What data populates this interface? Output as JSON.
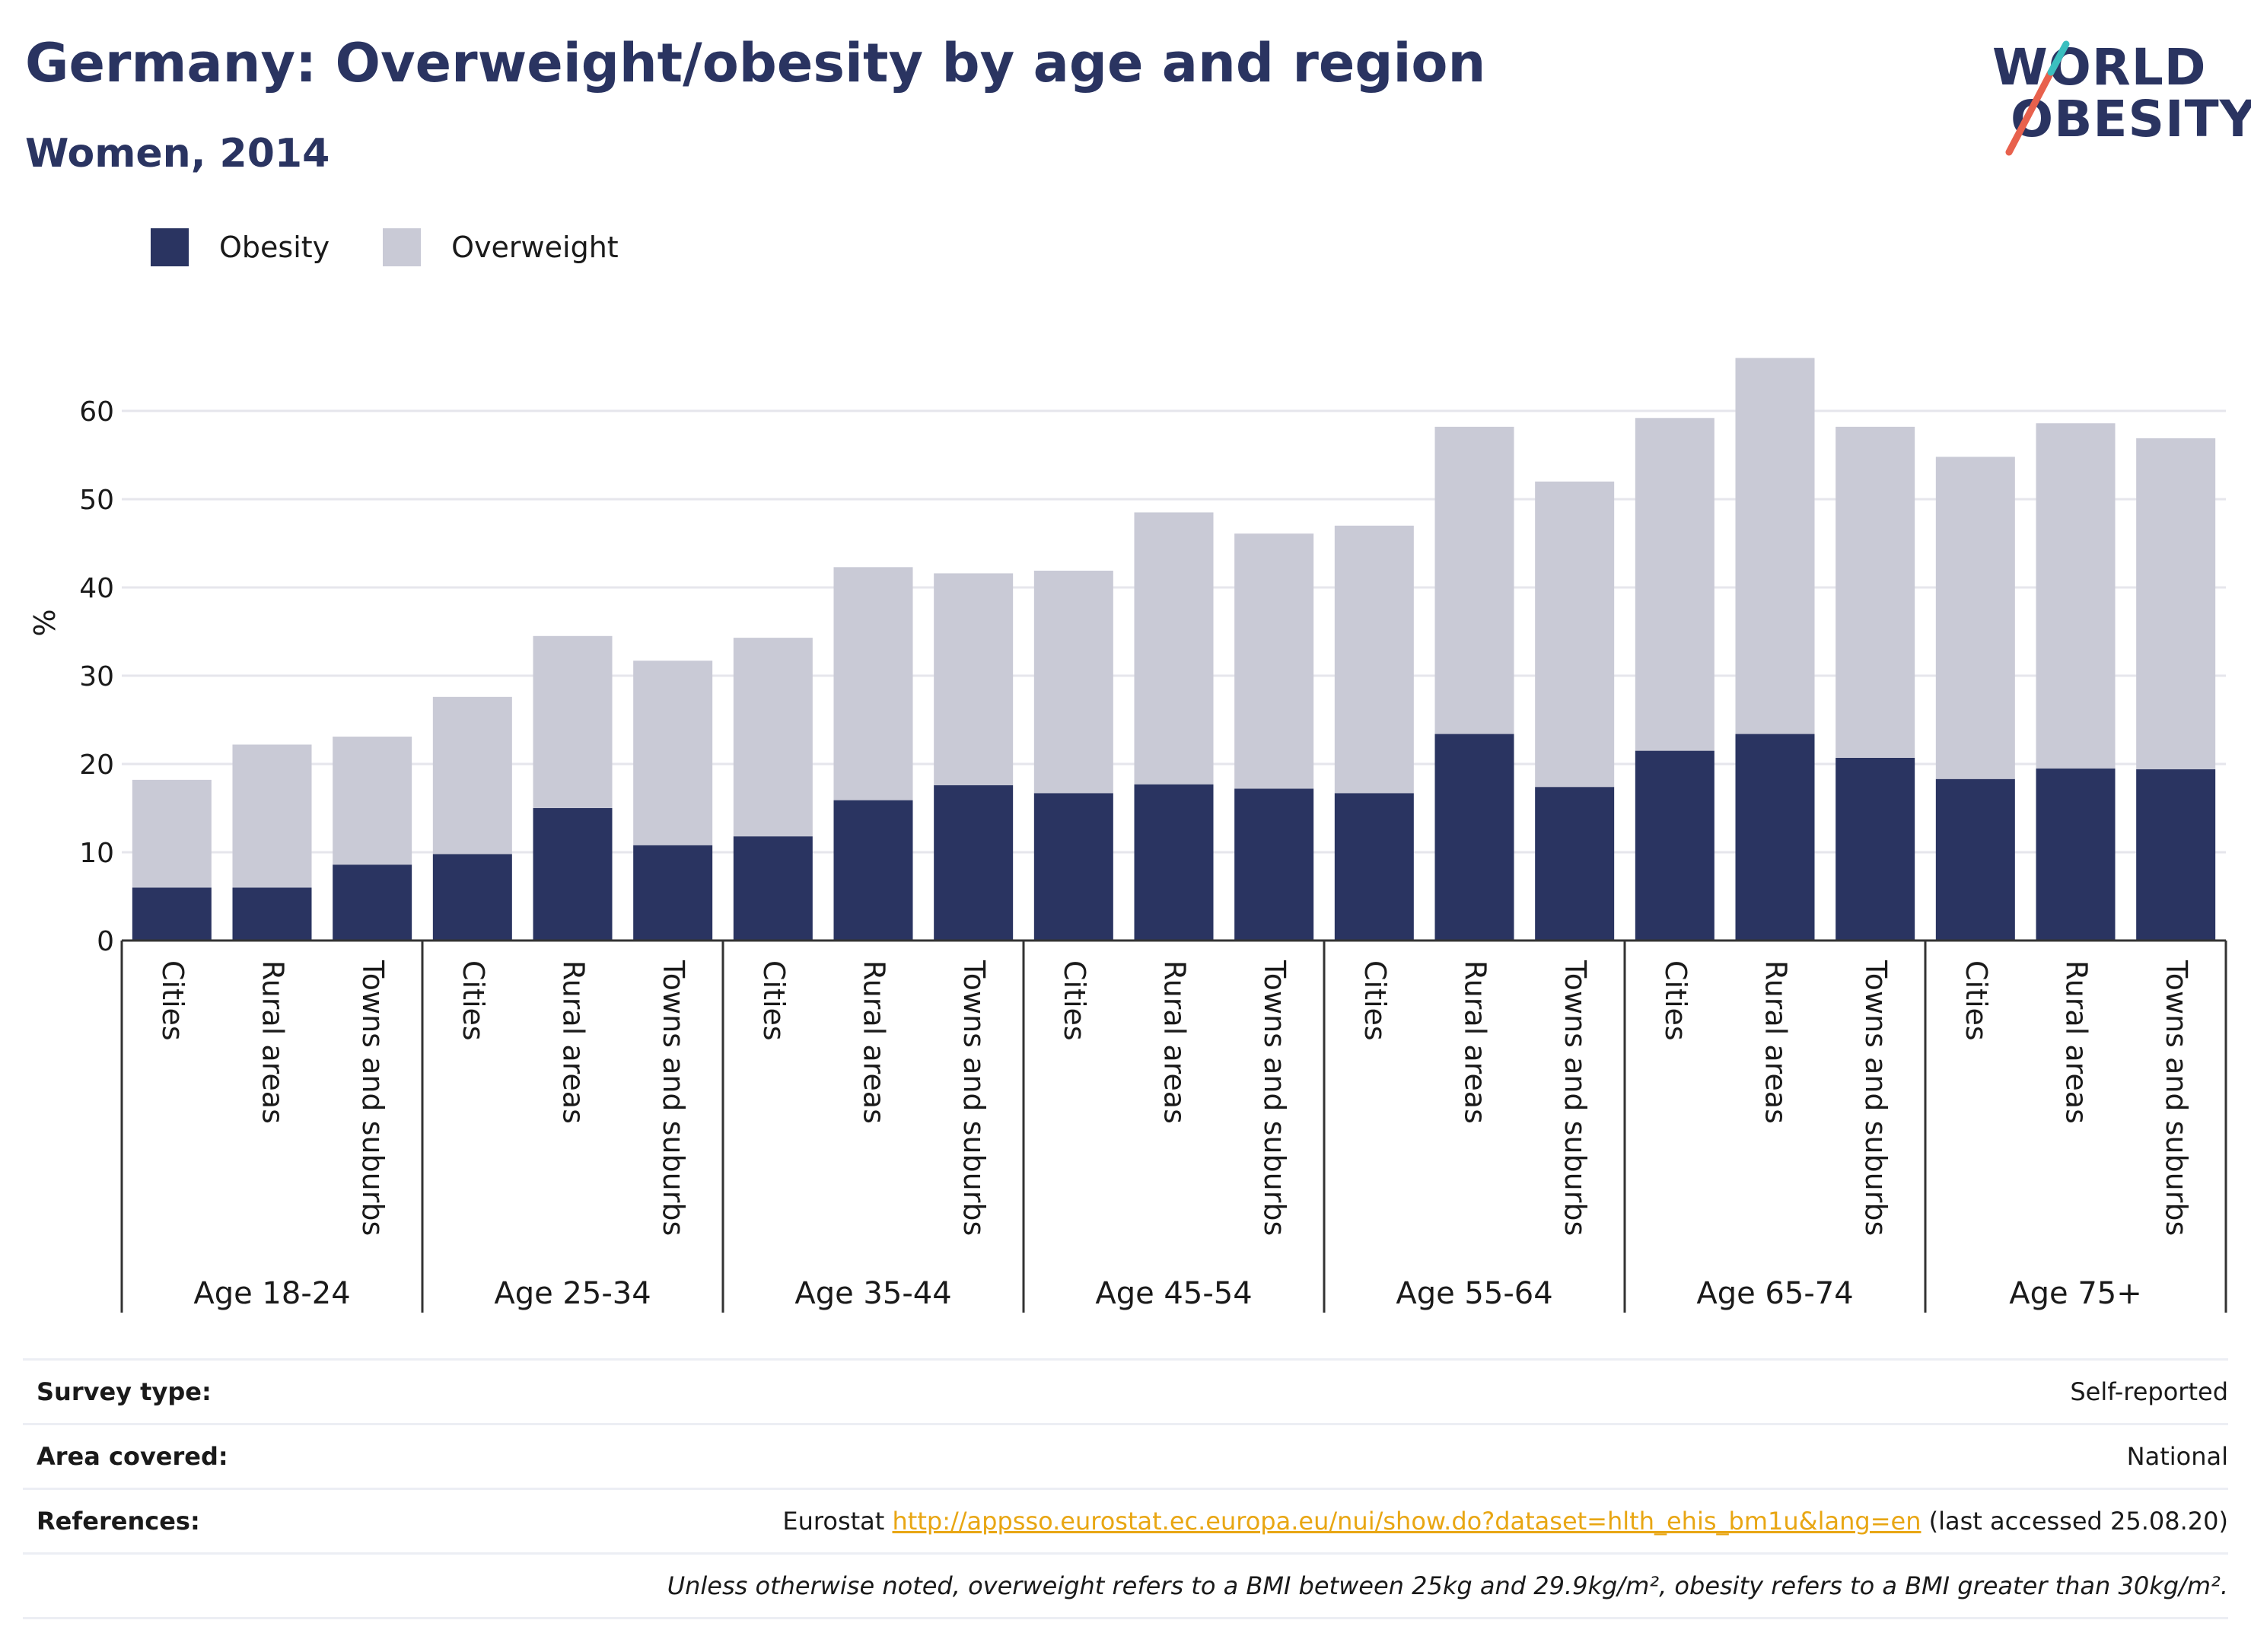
{
  "header": {
    "title": "Germany: Overweight/obesity by age and region",
    "subtitle": "Women, 2014"
  },
  "logo": {
    "line1": "WORLD",
    "line2": "OBESITY",
    "colors": [
      "#2a3461",
      "#e8614d",
      "#3bbfbf"
    ]
  },
  "colors": {
    "obesity": "#2a3461",
    "overweight": "#c9cad6",
    "grid": "#e6e6ec",
    "axis": "#333333"
  },
  "chart_data": {
    "type": "bar",
    "stacked": true,
    "ylabel": "%",
    "ylim": [
      0,
      70
    ],
    "yticks": [
      0,
      10,
      20,
      30,
      40,
      50,
      60
    ],
    "grid": true,
    "legend_position": "top-left",
    "groups": [
      {
        "label": "Age 18-24",
        "categories": [
          "Cities",
          "Rural areas",
          "Towns and suburbs"
        ]
      },
      {
        "label": "Age 25-34",
        "categories": [
          "Cities",
          "Rural areas",
          "Towns and suburbs"
        ]
      },
      {
        "label": "Age 35-44",
        "categories": [
          "Cities",
          "Rural areas",
          "Towns and suburbs"
        ]
      },
      {
        "label": "Age 45-54",
        "categories": [
          "Cities",
          "Rural areas",
          "Towns and suburbs"
        ]
      },
      {
        "label": "Age 55-64",
        "categories": [
          "Cities",
          "Rural areas",
          "Towns and suburbs"
        ]
      },
      {
        "label": "Age 65-74",
        "categories": [
          "Cities",
          "Rural areas",
          "Towns and suburbs"
        ]
      },
      {
        "label": "Age 75+",
        "categories": [
          "Cities",
          "Rural areas",
          "Towns and suburbs"
        ]
      }
    ],
    "series": [
      {
        "name": "Obesity",
        "values": [
          6.0,
          6.0,
          8.6,
          9.8,
          15.0,
          10.8,
          11.8,
          15.9,
          17.6,
          16.7,
          17.7,
          17.2,
          16.7,
          23.4,
          17.4,
          21.5,
          23.4,
          20.7,
          18.3,
          19.5,
          19.4
        ]
      },
      {
        "name": "Overweight",
        "values": [
          12.2,
          16.2,
          14.5,
          17.8,
          19.5,
          20.9,
          22.5,
          26.4,
          24.0,
          25.2,
          30.8,
          28.9,
          30.3,
          34.8,
          34.6,
          37.7,
          42.6,
          37.5,
          36.5,
          39.1,
          37.5
        ]
      }
    ]
  },
  "footer": {
    "rows": [
      {
        "label": "Survey type:",
        "value": "Self-reported"
      },
      {
        "label": "Area covered:",
        "value": "National"
      },
      {
        "label": "References:",
        "value_prefix": "Eurostat ",
        "link": "http://appsso.eurostat.ec.europa.eu/nui/show.do?dataset=hlth_ehis_bm1u&lang=en",
        "value_suffix": " (last accessed 25.08.20)"
      }
    ],
    "note": "Unless otherwise noted, overweight refers to a BMI between 25kg and 29.9kg/m², obesity refers to a BMI greater than 30kg/m²."
  }
}
